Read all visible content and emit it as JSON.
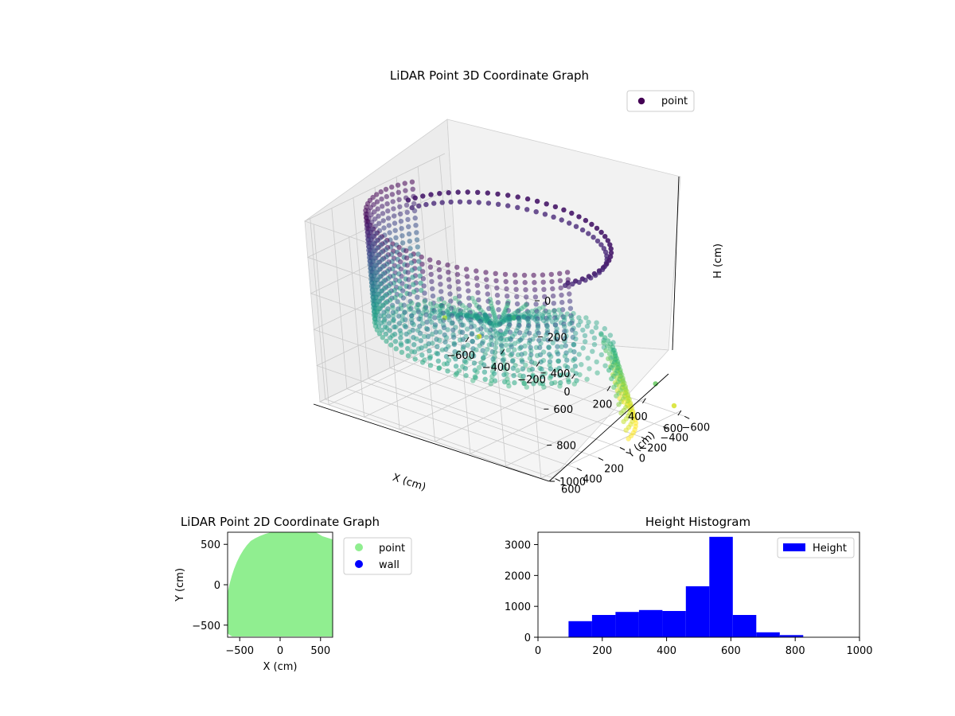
{
  "chart_data": [
    {
      "type": "scatter",
      "projection": "3d",
      "title": "LiDAR Point 3D Coordinate Graph",
      "xlabel": "X (cm)",
      "ylabel": "Y (cm)",
      "zlabel": "H (cm)",
      "xlim": [
        -650,
        650
      ],
      "ylim": [
        -650,
        650
      ],
      "zlim": [
        1000,
        0
      ],
      "z_inverted": true,
      "x_ticks": [
        "−600",
        "−400",
        "−200",
        "0",
        "200",
        "400",
        "600"
      ],
      "y_ticks": [
        "−600",
        "−400",
        "−200",
        "0",
        "200",
        "400",
        "600"
      ],
      "z_ticks": [
        "0",
        "200",
        "400",
        "600",
        "800",
        "1000"
      ],
      "colormap": "viridis",
      "legend": {
        "position": "top-right",
        "entries": [
          "point"
        ]
      },
      "grid": true,
      "series": [
        {
          "name": "point",
          "description_of_shape": "room-shaped point cloud: ring wall near radius ~600 with rising wall on the far side; floor surface in the middle",
          "sample_points": [
            {
              "x": -600,
              "y": 600,
              "h": 100
            },
            {
              "x": -450,
              "y": 350,
              "h": 350
            },
            {
              "x": -300,
              "y": 100,
              "h": 580
            },
            {
              "x": 0,
              "y": -100,
              "h": 600
            },
            {
              "x": 300,
              "y": -150,
              "h": 580
            },
            {
              "x": 550,
              "y": -100,
              "h": 600
            },
            {
              "x": 600,
              "y": 200,
              "h": 0
            },
            {
              "x": 300,
              "y": 500,
              "h": 20
            },
            {
              "x": 0,
              "y": 600,
              "h": 50
            },
            {
              "x": 200,
              "y": 0,
              "h": 600
            },
            {
              "x": 500,
              "y": -400,
              "h": 900
            },
            {
              "x": 600,
              "y": -600,
              "h": 1000
            },
            {
              "x": -600,
              "y": -400,
              "h": 800
            },
            {
              "x": -500,
              "y": -600,
              "h": 950
            }
          ]
        }
      ]
    },
    {
      "type": "scatter",
      "title": "LiDAR Point 2D Coordinate Graph",
      "xlabel": "X (cm)",
      "ylabel": "Y (cm)",
      "xlim": [
        -650,
        650
      ],
      "ylim": [
        -650,
        650
      ],
      "x_ticks": [
        "−500",
        "0",
        "500"
      ],
      "y_ticks": [
        "−500",
        "0",
        "500"
      ],
      "legend": {
        "position": "outside-right",
        "entries": [
          "point",
          "wall"
        ]
      },
      "series": [
        {
          "name": "point",
          "color": "#90ee90",
          "fill": "dense region covering most of the axes, rounded top-left edge"
        },
        {
          "name": "wall",
          "color": "#0000ff",
          "points": []
        }
      ]
    },
    {
      "type": "bar",
      "title": "Height Histogram",
      "xlim": [
        0,
        1000
      ],
      "ylim": [
        0,
        3400
      ],
      "x_ticks": [
        "0",
        "200",
        "400",
        "600",
        "800",
        "1000"
      ],
      "y_ticks": [
        "0",
        "1000",
        "2000",
        "3000"
      ],
      "legend": {
        "position": "top-right",
        "entries": [
          "Height"
        ]
      },
      "series": [
        {
          "name": "Height",
          "color": "#0000ff",
          "bins": [
            {
              "x0": 95,
              "x1": 168,
              "count": 520
            },
            {
              "x0": 168,
              "x1": 241,
              "count": 720
            },
            {
              "x0": 241,
              "x1": 314,
              "count": 820
            },
            {
              "x0": 314,
              "x1": 387,
              "count": 880
            },
            {
              "x0": 387,
              "x1": 460,
              "count": 850
            },
            {
              "x0": 460,
              "x1": 533,
              "count": 1650
            },
            {
              "x0": 533,
              "x1": 606,
              "count": 3250
            },
            {
              "x0": 606,
              "x1": 679,
              "count": 720
            },
            {
              "x0": 679,
              "x1": 752,
              "count": 160
            },
            {
              "x0": 752,
              "x1": 825,
              "count": 70
            }
          ]
        }
      ]
    }
  ]
}
